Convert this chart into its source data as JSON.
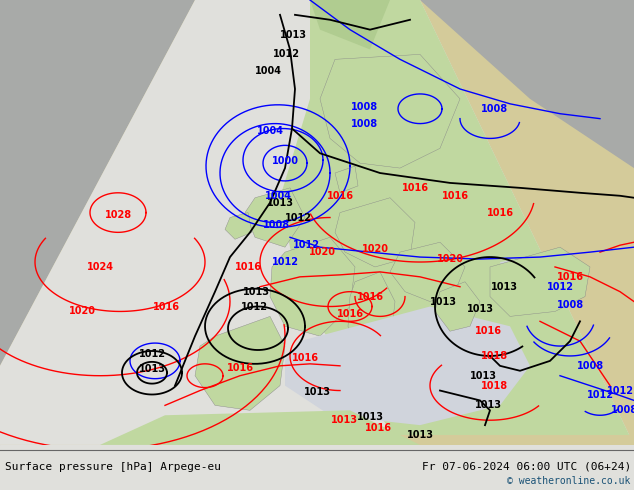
{
  "title_left": "Surface pressure [hPa] Arpege-eu",
  "title_right": "Fr 07-06-2024 06:00 UTC (06+24)",
  "copyright": "© weatheronline.co.uk",
  "copyright_color": "#1a5276",
  "footer_bg": "#e0e0dc",
  "fig_bg": "#c8c8c0",
  "colors": {
    "land_outside": "#b4b4b0",
    "land_bg": "#d4cb9a",
    "ocean_bg": "#c8ccd4",
    "forecast_white": "#e8e8e4",
    "forecast_green": "#c0d8a0",
    "forecast_green_land": "#b8d890"
  }
}
